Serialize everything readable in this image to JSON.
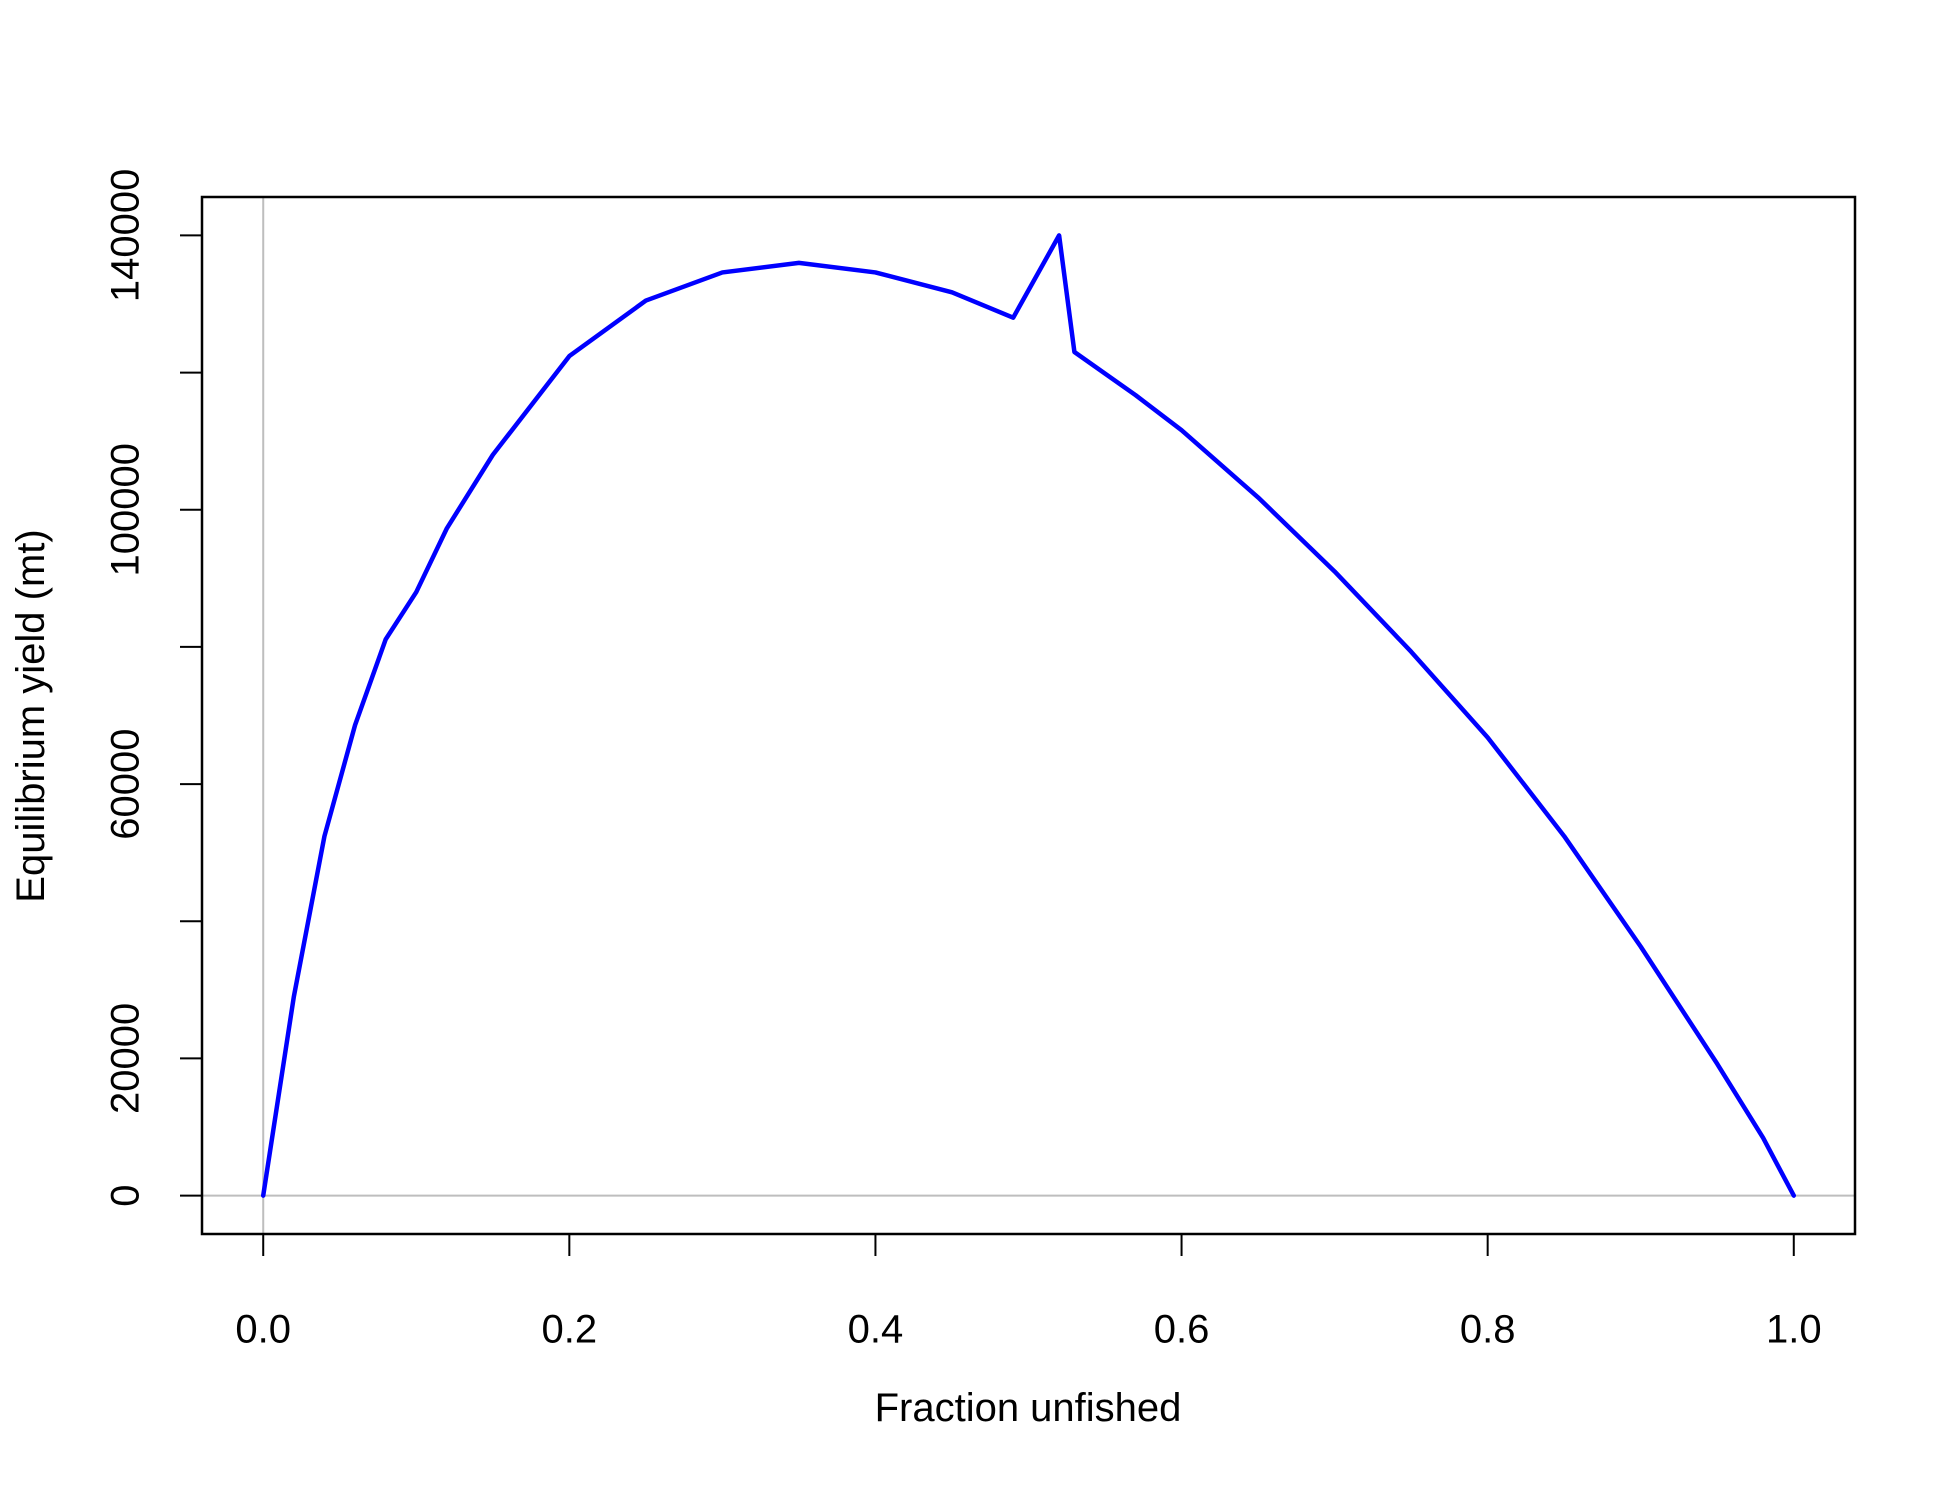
{
  "chart_data": {
    "type": "line",
    "x_label": "Fraction unfished",
    "y_label": "Equilibrium yield (mt)",
    "series": [
      {
        "name": "Equilibrium yield",
        "color": "#0000ff",
        "x": [
          0.0,
          0.02,
          0.04,
          0.06,
          0.08,
          0.1,
          0.12,
          0.15,
          0.2,
          0.25,
          0.3,
          0.35,
          0.4,
          0.45,
          0.49,
          0.52,
          0.53,
          0.57,
          0.6,
          0.65,
          0.7,
          0.75,
          0.8,
          0.85,
          0.9,
          0.95,
          0.98,
          1.0
        ],
        "values": [
          0,
          29000,
          52400,
          68600,
          81100,
          88000,
          97300,
          108000,
          122400,
          130500,
          134600,
          136000,
          134600,
          131700,
          128000,
          140000,
          123000,
          116700,
          111600,
          101800,
          91000,
          79300,
          66800,
          52400,
          36300,
          19200,
          8400,
          0
        ]
      }
    ],
    "xlim": [
      -0.04,
      1.04
    ],
    "xticks": [
      {
        "value": 0,
        "label": "0.0"
      },
      0.2,
      0.4,
      0.6,
      0.8,
      {
        "value": 1,
        "label": "1.0"
      }
    ],
    "ylim": [
      -5600,
      145600
    ],
    "yticks": [
      0,
      20000,
      {
        "value": 40000,
        "label": null
      },
      60000,
      {
        "value": 80000,
        "label": null
      },
      100000,
      {
        "value": 120000,
        "label": null
      },
      140000
    ],
    "reference_lines": {
      "x": [
        0
      ],
      "y": [
        0
      ],
      "color": "#bebebe"
    }
  }
}
